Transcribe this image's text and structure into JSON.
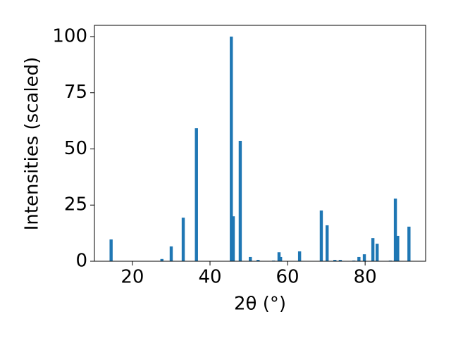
{
  "chart_data": {
    "type": "bar",
    "x_label": "2θ (°)",
    "y_label": "Intensities (scaled)",
    "x": [
      14.5,
      27.6,
      30.0,
      33.1,
      36.5,
      45.5,
      46.0,
      47.8,
      50.4,
      52.4,
      56.4,
      57.8,
      58.2,
      63.1,
      68.7,
      70.2,
      72.2,
      73.6,
      77.1,
      78.4,
      79.8,
      82.0,
      83.1,
      86.5,
      87.8,
      88.4,
      91.3
    ],
    "values": [
      9.7,
      1.0,
      6.6,
      19.4,
      59.2,
      100,
      20.0,
      53.6,
      1.9,
      0.6,
      0.3,
      4.0,
      1.9,
      4.4,
      22.6,
      16.0,
      0.6,
      0.6,
      0.3,
      1.9,
      3.1,
      10.3,
      7.8,
      0.3,
      27.9,
      11.3,
      15.4
    ],
    "color": "#1f77b4",
    "xlim": [
      10.2,
      95.6
    ],
    "xticks": [
      20,
      40,
      60,
      80
    ],
    "ylim": [
      0,
      105
    ],
    "yticks": [
      0,
      25,
      50,
      75,
      100
    ],
    "grid": false
  }
}
